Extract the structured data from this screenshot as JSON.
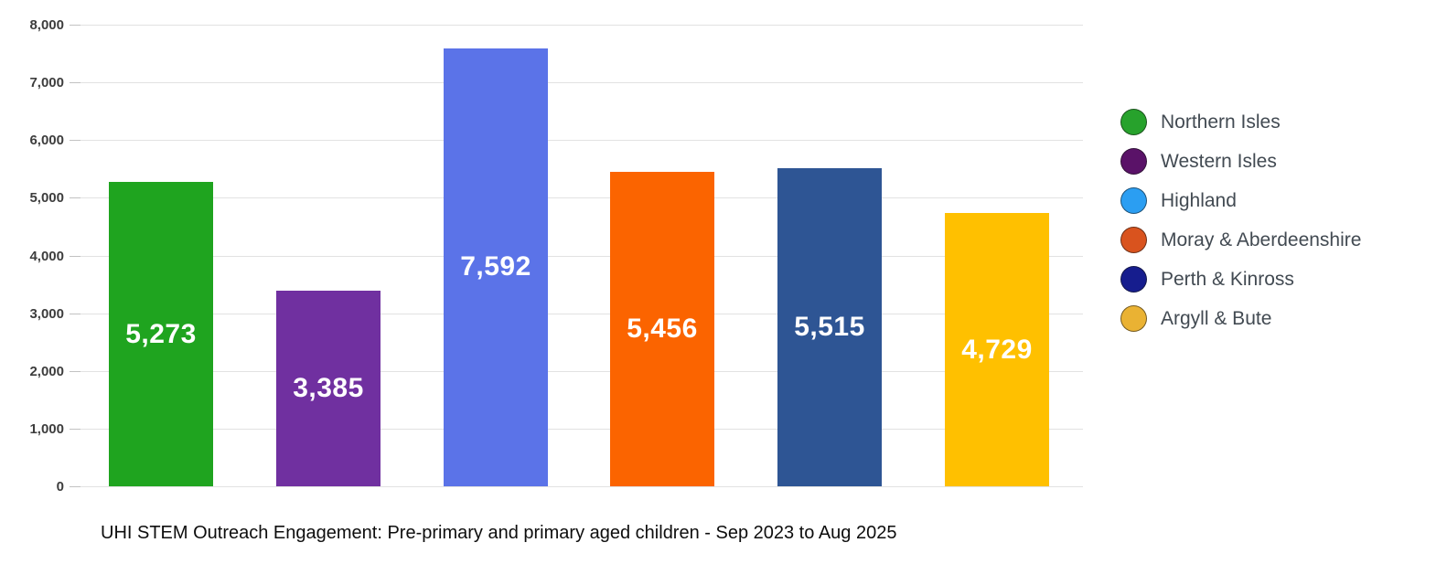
{
  "colors": {
    "background": "#ffffff",
    "gridline": "#e2e2e2",
    "axis_label": "#3d3d3d",
    "legend_label": "#424a52",
    "value_label": "#ffffff",
    "title": "#0d0d0d"
  },
  "chart_data": {
    "type": "bar",
    "title": "UHI STEM Outreach Engagement: Pre-primary and primary aged children - Sep 2023 to Aug 2025",
    "xlabel": "",
    "ylabel": "",
    "ylim": [
      0,
      8000
    ],
    "ytick_step": 1000,
    "grid": true,
    "legend_position": "right",
    "categories": [
      "Northern Isles",
      "Western Isles",
      "Highland",
      "Moray & Aberdeenshire",
      "Perth & Kinross",
      "Argyll & Bute"
    ],
    "values": [
      5273,
      3385,
      7592,
      5456,
      5515,
      4729
    ],
    "bars": [
      {
        "category": "Northern Isles",
        "value": 5273,
        "label": "5,273",
        "bar_color": "#1fa41f",
        "legend_color": "#27a22c"
      },
      {
        "category": "Western Isles",
        "value": 3385,
        "label": "3,385",
        "bar_color": "#7030a0",
        "legend_color": "#5a1268"
      },
      {
        "category": "Highland",
        "value": 7592,
        "label": "7,592",
        "bar_color": "#5b73e8",
        "legend_color": "#2b9ef2"
      },
      {
        "category": "Moray & Aberdeenshire",
        "value": 5456,
        "label": "5,456",
        "bar_color": "#fb6400",
        "legend_color": "#d9531e"
      },
      {
        "category": "Perth & Kinross",
        "value": 5515,
        "label": "5,515",
        "bar_color": "#2e5594",
        "legend_color": "#161d8e"
      },
      {
        "category": "Argyll & Bute",
        "value": 4729,
        "label": "4,729",
        "bar_color": "#ffc000",
        "legend_color": "#eab233"
      }
    ],
    "yticks": [
      {
        "value": 8000,
        "label": "8,000"
      },
      {
        "value": 7000,
        "label": "7,000"
      },
      {
        "value": 6000,
        "label": "6,000"
      },
      {
        "value": 5000,
        "label": "5,000"
      },
      {
        "value": 4000,
        "label": "4,000"
      },
      {
        "value": 3000,
        "label": "3,000"
      },
      {
        "value": 2000,
        "label": "2,000"
      },
      {
        "value": 1000,
        "label": "1,000"
      },
      {
        "value": 0,
        "label": "0"
      }
    ]
  }
}
